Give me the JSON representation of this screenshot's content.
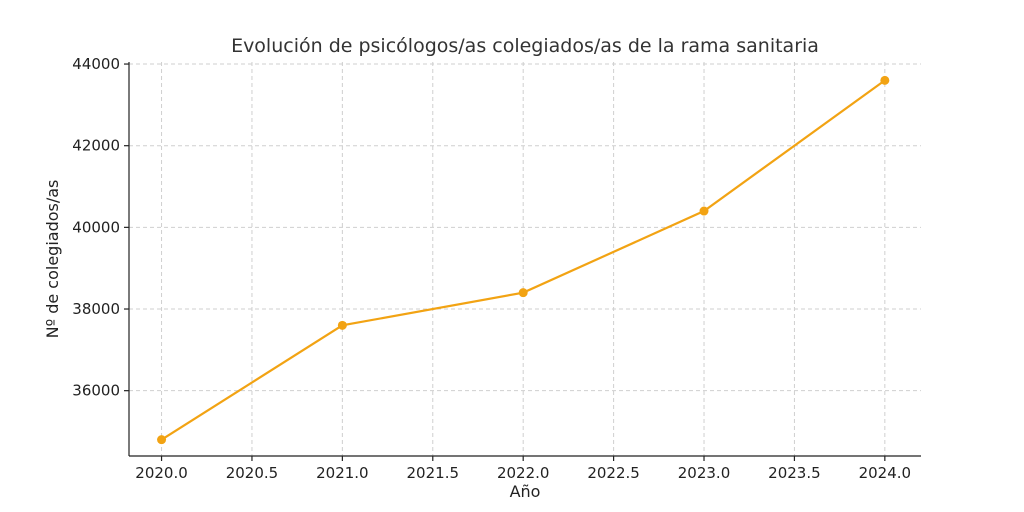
{
  "chart_data": {
    "type": "line",
    "title": "Evolución de psicólogos/as colegiados/as de la rama sanitaria",
    "xlabel": "Año",
    "ylabel": "Nº de colegiados/as",
    "x": [
      2020.0,
      2021.0,
      2022.0,
      2023.0,
      2024.0
    ],
    "values": [
      34800,
      37600,
      38400,
      40400,
      43600
    ],
    "xlim": [
      2019.82,
      2024.2
    ],
    "ylim": [
      34400,
      44050
    ],
    "x_ticks": [
      "2020.0",
      "2020.5",
      "2021.0",
      "2021.5",
      "2022.0",
      "2022.5",
      "2023.0",
      "2023.5",
      "2024.0"
    ],
    "y_ticks": [
      "36000",
      "38000",
      "40000",
      "42000",
      "44000"
    ],
    "grid": true,
    "color": "#f2a313"
  }
}
